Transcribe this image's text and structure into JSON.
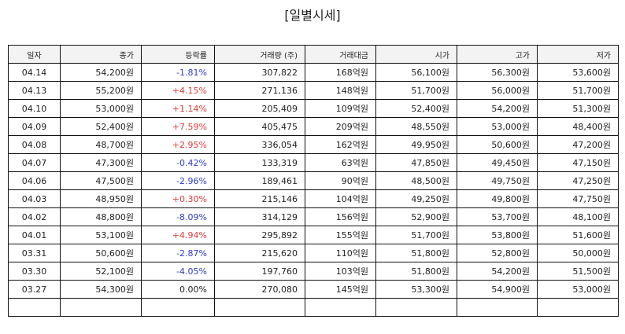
{
  "title": "[일별시세]",
  "headers": [
    "일자",
    "종가",
    "등락률",
    "거래량 (주)",
    "거래대금",
    "시가",
    "고가",
    "저가"
  ],
  "rows": [
    {
      "date": "04.14",
      "close": "54,200원",
      "change": "-1.81%",
      "dir": "down",
      "volume": "307,822",
      "amount": "168억원",
      "open": "56,100원",
      "high": "56,300원",
      "low": "53,600원"
    },
    {
      "date": "04.13",
      "close": "55,200원",
      "change": "+4.15%",
      "dir": "up",
      "volume": "271,136",
      "amount": "148억원",
      "open": "51,700원",
      "high": "56,000원",
      "low": "51,700원"
    },
    {
      "date": "04.10",
      "close": "53,000원",
      "change": "+1.14%",
      "dir": "up",
      "volume": "205,409",
      "amount": "109억원",
      "open": "52,400원",
      "high": "54,200원",
      "low": "51,300원"
    },
    {
      "date": "04.09",
      "close": "52,400원",
      "change": "+7.59%",
      "dir": "up",
      "volume": "405,475",
      "amount": "209억원",
      "open": "48,550원",
      "high": "53,000원",
      "low": "48,400원"
    },
    {
      "date": "04.08",
      "close": "48,700원",
      "change": "+2.95%",
      "dir": "up",
      "volume": "336,054",
      "amount": "162억원",
      "open": "49,950원",
      "high": "50,600원",
      "low": "47,200원"
    },
    {
      "date": "04.07",
      "close": "47,300원",
      "change": "-0.42%",
      "dir": "down",
      "volume": "133,319",
      "amount": "63억원",
      "open": "47,850원",
      "high": "49,450원",
      "low": "47,150원"
    },
    {
      "date": "04.06",
      "close": "47,500원",
      "change": "-2.96%",
      "dir": "down",
      "volume": "189,461",
      "amount": "90억원",
      "open": "48,500원",
      "high": "49,750원",
      "low": "47,250원"
    },
    {
      "date": "04.03",
      "close": "48,950원",
      "change": "+0.30%",
      "dir": "up",
      "volume": "215,146",
      "amount": "104억원",
      "open": "49,250원",
      "high": "49,800원",
      "low": "47,750원"
    },
    {
      "date": "04.02",
      "close": "48,800원",
      "change": "-8.09%",
      "dir": "down",
      "volume": "314,129",
      "amount": "156억원",
      "open": "52,900원",
      "high": "53,700원",
      "low": "48,100원"
    },
    {
      "date": "04.01",
      "close": "53,100원",
      "change": "+4.94%",
      "dir": "up",
      "volume": "295,892",
      "amount": "155억원",
      "open": "51,700원",
      "high": "53,800원",
      "low": "51,600원"
    },
    {
      "date": "03.31",
      "close": "50,600원",
      "change": "-2.87%",
      "dir": "down",
      "volume": "215,620",
      "amount": "110억원",
      "open": "51,800원",
      "high": "52,800원",
      "low": "50,000원"
    },
    {
      "date": "03.30",
      "close": "52,100원",
      "change": "-4.05%",
      "dir": "down",
      "volume": "197,760",
      "amount": "103억원",
      "open": "51,800원",
      "high": "54,200원",
      "low": "51,500원"
    },
    {
      "date": "03.27",
      "close": "54,300원",
      "change": "0.00%",
      "dir": "flat",
      "volume": "270,080",
      "amount": "145억원",
      "open": "53,300원",
      "high": "54,900원",
      "low": "53,000원"
    },
    {
      "date": "",
      "close": "",
      "change": "",
      "dir": "flat",
      "volume": "",
      "amount": "",
      "open": "",
      "high": "",
      "low": ""
    }
  ],
  "colors": {
    "up": "#e23b3b",
    "down": "#2c3ecf",
    "header_bg": "#f3f3f3",
    "border": "#111111"
  }
}
